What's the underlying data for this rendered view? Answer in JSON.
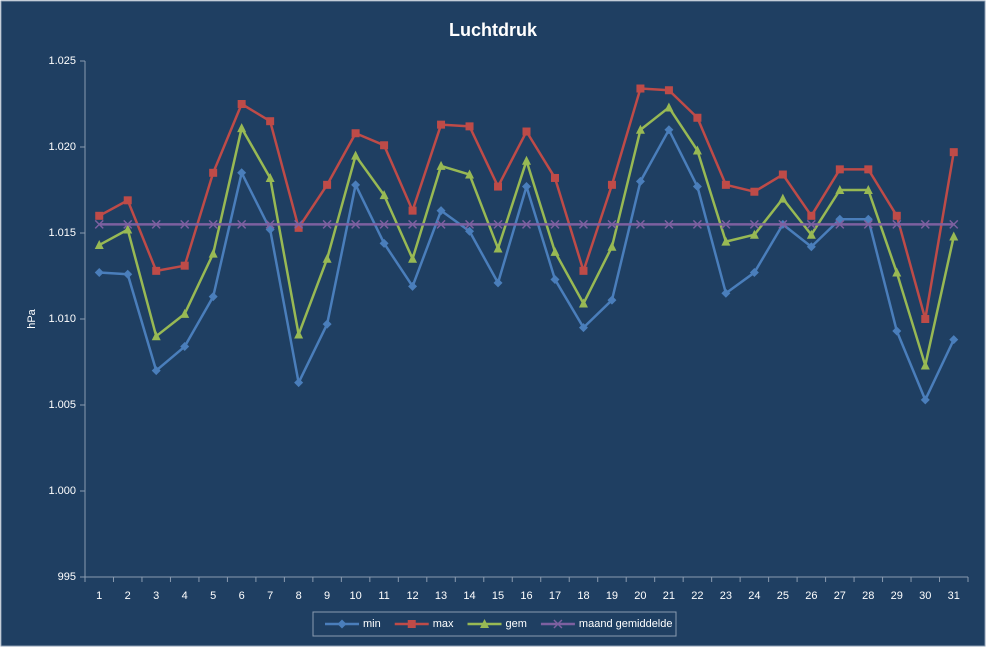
{
  "chart_data": {
    "type": "line",
    "title": "Luchtdruk",
    "y_label": "hPa",
    "categories": [
      "1",
      "2",
      "3",
      "4",
      "5",
      "6",
      "7",
      "8",
      "9",
      "10",
      "11",
      "12",
      "13",
      "14",
      "15",
      "16",
      "17",
      "18",
      "19",
      "20",
      "21",
      "22",
      "23",
      "24",
      "25",
      "26",
      "27",
      "28",
      "29",
      "30",
      "31"
    ],
    "ylim": [
      995,
      1025
    ],
    "yticks": [
      995,
      {
        "value": 1000,
        "label": "1.000"
      },
      {
        "value": 1005,
        "label": "1.005"
      },
      {
        "value": 1010,
        "label": "1.010"
      },
      {
        "value": 1015,
        "label": "1.015"
      },
      {
        "value": 1020,
        "label": "1.020"
      },
      {
        "value": 1025,
        "label": "1.025"
      }
    ],
    "grid": false,
    "legend": "bottom",
    "series": [
      {
        "name": "min",
        "color": "#4a7ebb",
        "marker": "diamond",
        "values": [
          1012.7,
          1012.6,
          1007.0,
          1008.4,
          1011.3,
          1018.5,
          1015.2,
          1006.3,
          1009.7,
          1017.8,
          1014.4,
          1011.9,
          1016.3,
          1015.1,
          1012.1,
          1017.7,
          1012.3,
          1009.5,
          1011.1,
          1018.0,
          1021.0,
          1017.7,
          1011.5,
          1012.7,
          1015.5,
          1014.2,
          1015.8,
          1015.8,
          1009.3,
          1005.3,
          1008.8
        ]
      },
      {
        "name": "max",
        "color": "#be4b48",
        "marker": "square",
        "values": [
          1016.0,
          1016.9,
          1012.8,
          1013.1,
          1018.5,
          1022.5,
          1021.5,
          1015.3,
          1017.8,
          1020.8,
          1020.1,
          1016.3,
          1021.3,
          1021.2,
          1017.7,
          1020.9,
          1018.2,
          1012.8,
          1017.8,
          1023.4,
          1023.3,
          1021.7,
          1017.8,
          1017.4,
          1018.4,
          1016.0,
          1018.7,
          1018.7,
          1016.0,
          1010.0,
          1019.7
        ]
      },
      {
        "name": "gem",
        "color": "#98b954",
        "marker": "triangle",
        "values": [
          1014.3,
          1015.2,
          1009.0,
          1010.3,
          1013.8,
          1021.1,
          1018.2,
          1009.1,
          1013.5,
          1019.5,
          1017.2,
          1013.5,
          1018.9,
          1018.4,
          1014.1,
          1019.2,
          1013.9,
          1010.9,
          1014.2,
          1021.0,
          1022.3,
          1019.8,
          1014.5,
          1014.9,
          1017.0,
          1014.9,
          1017.5,
          1017.5,
          1012.7,
          1007.3,
          1014.8
        ]
      },
      {
        "name": "maand gemiddelde",
        "color": "#7d60a0",
        "marker": "x",
        "values": [
          1015.5,
          1015.5,
          1015.5,
          1015.5,
          1015.5,
          1015.5,
          1015.5,
          1015.5,
          1015.5,
          1015.5,
          1015.5,
          1015.5,
          1015.5,
          1015.5,
          1015.5,
          1015.5,
          1015.5,
          1015.5,
          1015.5,
          1015.5,
          1015.5,
          1015.5,
          1015.5,
          1015.5,
          1015.5,
          1015.5,
          1015.5,
          1015.5,
          1015.5,
          1015.5,
          1015.5
        ]
      }
    ]
  }
}
